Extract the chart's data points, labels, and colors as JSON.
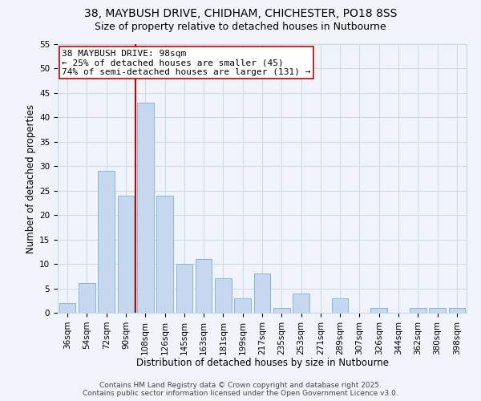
{
  "title": "38, MAYBUSH DRIVE, CHIDHAM, CHICHESTER, PO18 8SS",
  "subtitle": "Size of property relative to detached houses in Nutbourne",
  "xlabel": "Distribution of detached houses by size in Nutbourne",
  "ylabel": "Number of detached properties",
  "categories": [
    "36sqm",
    "54sqm",
    "72sqm",
    "90sqm",
    "108sqm",
    "126sqm",
    "145sqm",
    "163sqm",
    "181sqm",
    "199sqm",
    "217sqm",
    "235sqm",
    "253sqm",
    "271sqm",
    "289sqm",
    "307sqm",
    "326sqm",
    "344sqm",
    "362sqm",
    "380sqm",
    "398sqm"
  ],
  "values": [
    2,
    6,
    29,
    24,
    43,
    24,
    10,
    11,
    7,
    3,
    8,
    1,
    4,
    0,
    3,
    0,
    1,
    0,
    1,
    1,
    1
  ],
  "bar_color": "#c5d8f0",
  "bar_edge_color": "#7bafd4",
  "vline_x_index": 3.5,
  "vline_color": "#cc0000",
  "annotation_text": "38 MAYBUSH DRIVE: 98sqm\n← 25% of detached houses are smaller (45)\n74% of semi-detached houses are larger (131) →",
  "annotation_box_color": "#ffffff",
  "annotation_box_edge": "#cc0000",
  "ylim": [
    0,
    55
  ],
  "yticks": [
    0,
    5,
    10,
    15,
    20,
    25,
    30,
    35,
    40,
    45,
    50,
    55
  ],
  "footer1": "Contains HM Land Registry data © Crown copyright and database right 2025.",
  "footer2": "Contains public sector information licensed under the Open Government Licence v3.0.",
  "bg_color": "#f0f4fa",
  "grid_color": "#c8d8ea",
  "title_fontsize": 10,
  "subtitle_fontsize": 9,
  "axis_label_fontsize": 8.5,
  "tick_fontsize": 7.5,
  "annotation_fontsize": 8,
  "footer_fontsize": 6.5
}
